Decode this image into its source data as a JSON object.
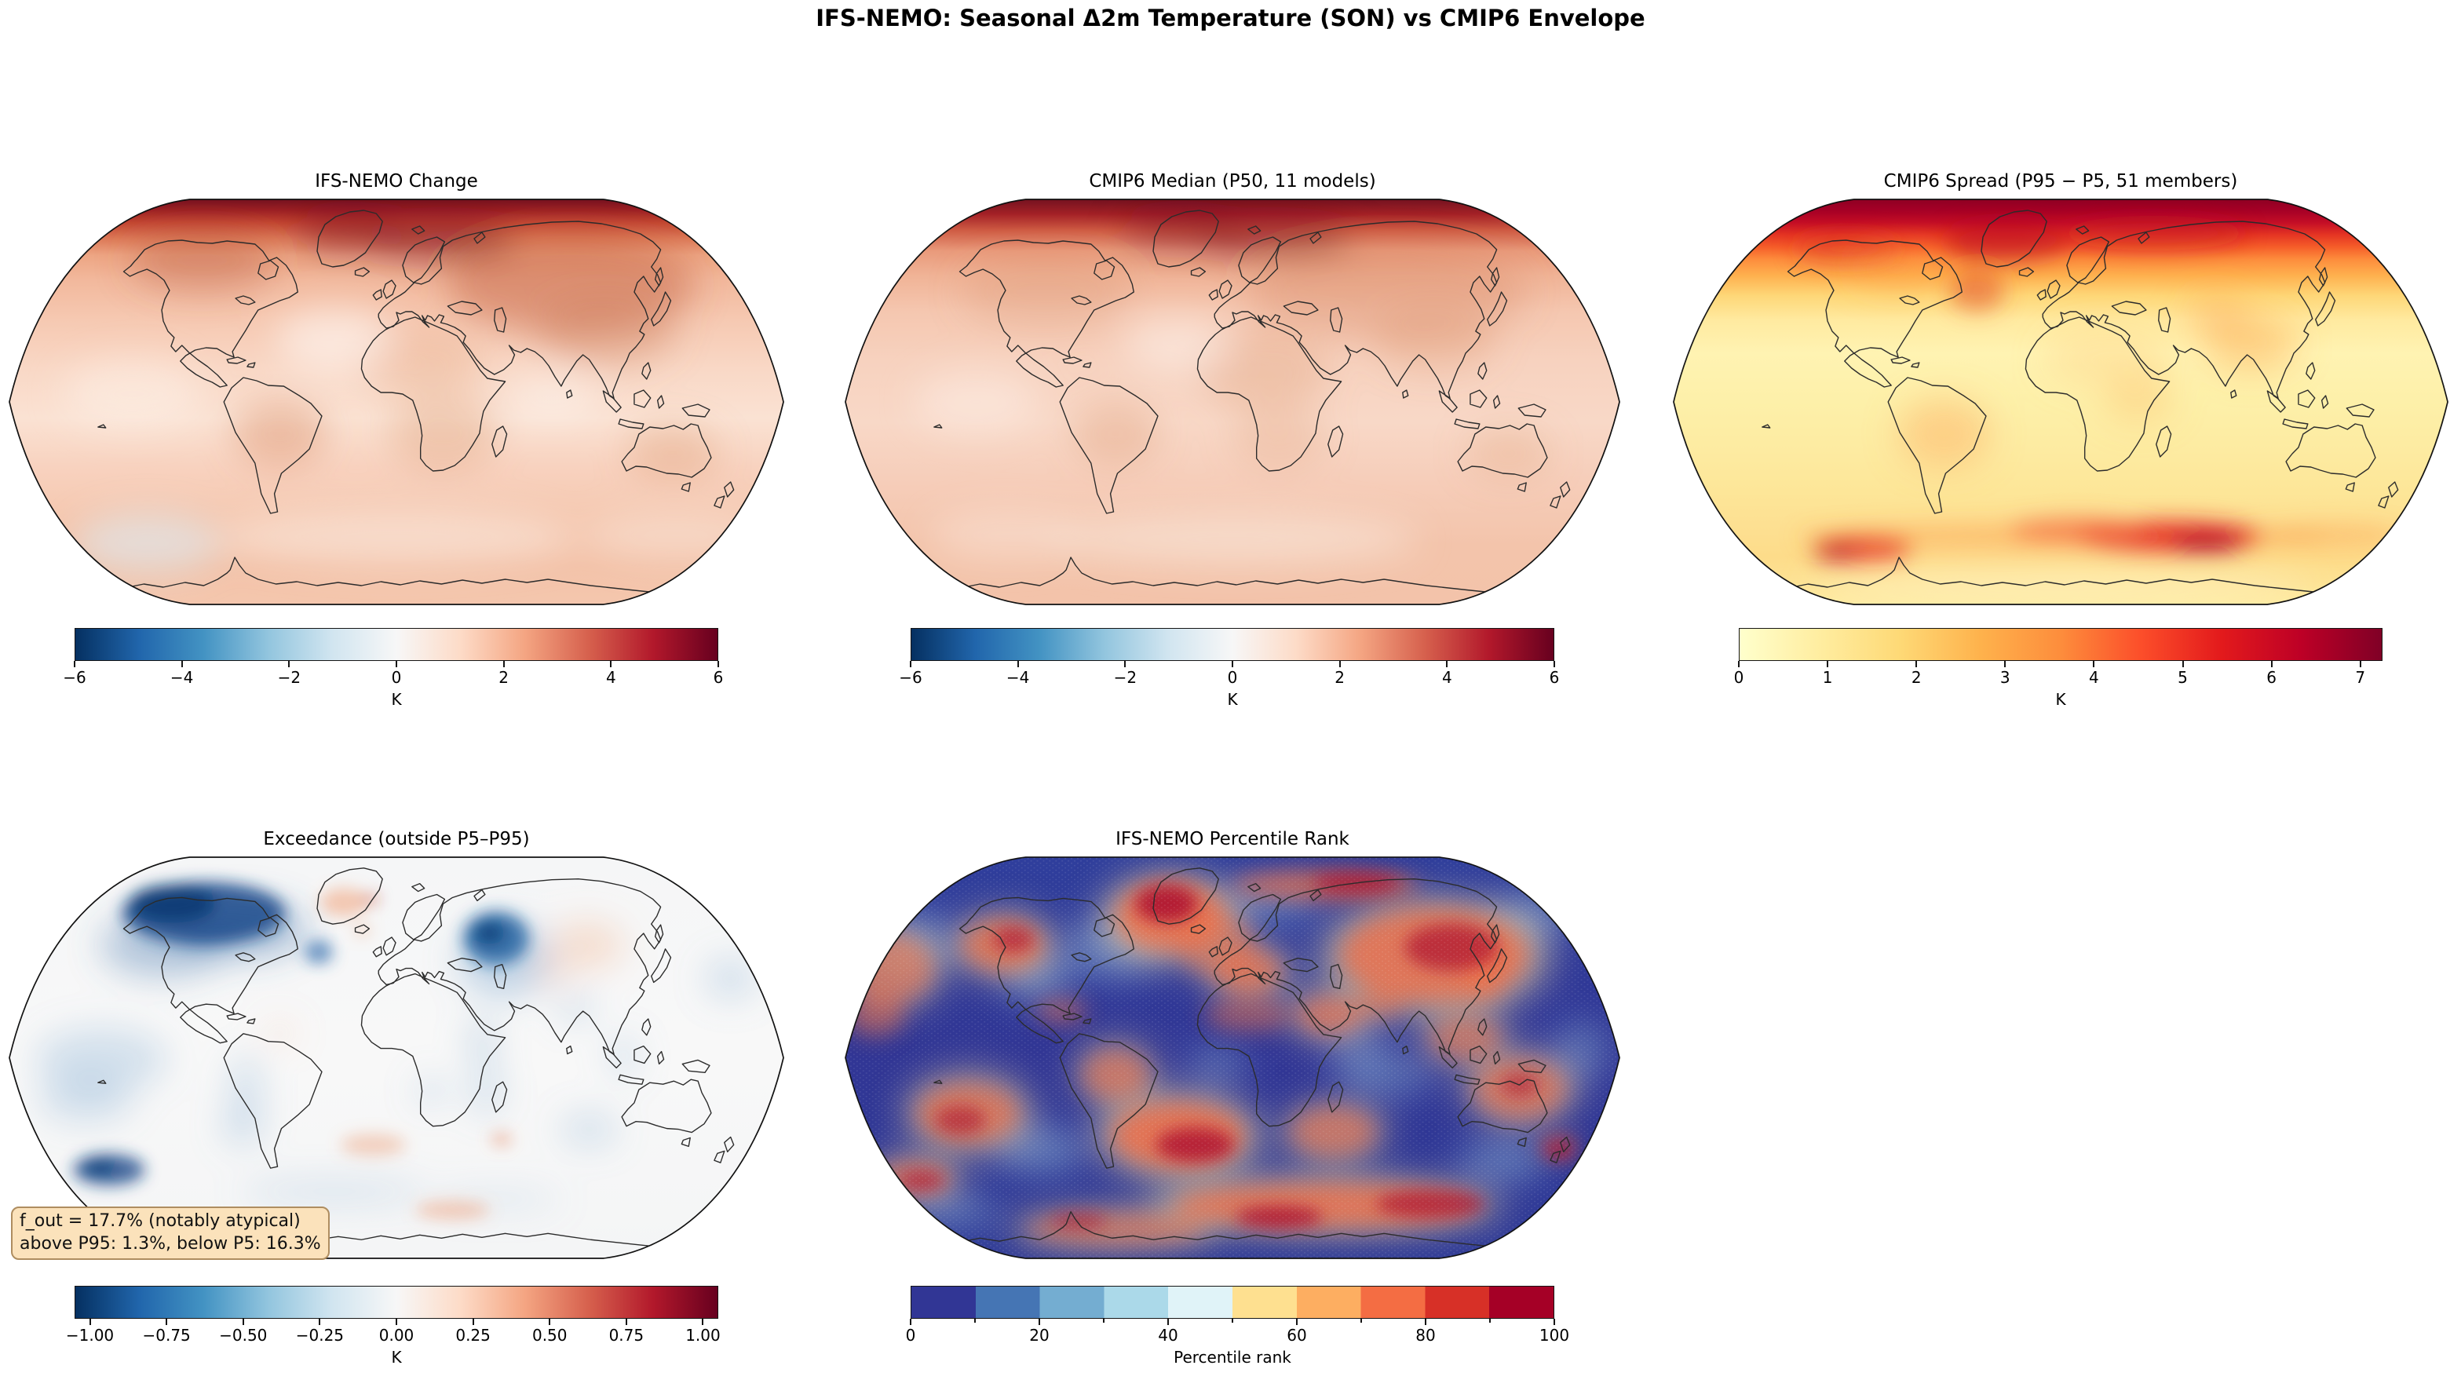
{
  "figure_title": "IFS-NEMO: Seasonal Δ2m Temperature (SON) vs CMIP6 Envelope",
  "panels": [
    {
      "key": "ifs_nemo_change",
      "title": "IFS-NEMO Change",
      "colorbar": {
        "unit": "K",
        "type": "continuous",
        "colormap": "RdBu_r",
        "vmin": -6,
        "vmax": 6,
        "tick_values": [
          -6,
          -4,
          -2,
          0,
          2,
          4,
          6
        ],
        "tick_labels": [
          "−6",
          "−4",
          "−2",
          "0",
          "2",
          "4",
          "6"
        ],
        "stops": [
          "#053061",
          "#2166ac",
          "#4393c3",
          "#92c5de",
          "#d1e5f0",
          "#f7f7f7",
          "#fddbc7",
          "#f4a582",
          "#d6604d",
          "#b2182b",
          "#67001f"
        ]
      }
    },
    {
      "key": "cmip6_median",
      "title": "CMIP6 Median (P50, 11 models)",
      "colorbar": {
        "unit": "K",
        "type": "continuous",
        "colormap": "RdBu_r",
        "vmin": -6,
        "vmax": 6,
        "tick_values": [
          -6,
          -4,
          -2,
          0,
          2,
          4,
          6
        ],
        "tick_labels": [
          "−6",
          "−4",
          "−2",
          "0",
          "2",
          "4",
          "6"
        ],
        "stops": [
          "#053061",
          "#2166ac",
          "#4393c3",
          "#92c5de",
          "#d1e5f0",
          "#f7f7f7",
          "#fddbc7",
          "#f4a582",
          "#d6604d",
          "#b2182b",
          "#67001f"
        ]
      }
    },
    {
      "key": "cmip6_spread",
      "title": "CMIP6 Spread (P95 − P5, 51 members)",
      "colorbar": {
        "unit": "K",
        "type": "continuous",
        "colormap": "YlOrRd",
        "vmin": 0,
        "vmax": 7.25,
        "tick_values": [
          0,
          1,
          2,
          3,
          4,
          5,
          6,
          7
        ],
        "tick_labels": [
          "0",
          "1",
          "2",
          "3",
          "4",
          "5",
          "6",
          "7"
        ],
        "stops": [
          "#ffffcc",
          "#ffeda0",
          "#fed976",
          "#feb24c",
          "#fd8d3c",
          "#fc4e2a",
          "#e31a1c",
          "#bd0026",
          "#800026"
        ]
      }
    },
    {
      "key": "exceedance",
      "title": "Exceedance (outside P5–P95)",
      "colorbar": {
        "unit": "K",
        "type": "continuous",
        "colormap": "RdBu_r",
        "vmin": -1.05,
        "vmax": 1.05,
        "tick_values": [
          -1,
          -0.75,
          -0.5,
          -0.25,
          0,
          0.25,
          0.5,
          0.75,
          1
        ],
        "tick_labels": [
          "−1.00",
          "−0.75",
          "−0.50",
          "−0.25",
          "0.00",
          "0.25",
          "0.50",
          "0.75",
          "1.00"
        ],
        "stops": [
          "#053061",
          "#2166ac",
          "#4393c3",
          "#92c5de",
          "#d1e5f0",
          "#f7f7f7",
          "#fddbc7",
          "#f4a582",
          "#d6604d",
          "#b2182b",
          "#67001f"
        ]
      }
    },
    {
      "key": "percentile_rank",
      "title": "IFS-NEMO Percentile Rank",
      "colorbar": {
        "unit": "Percentile rank",
        "type": "discrete",
        "colormap": "RdYlBu_r",
        "vmin": 0,
        "vmax": 100,
        "tick_values": [
          0,
          20,
          40,
          60,
          80,
          100
        ],
        "tick_labels": [
          "0",
          "20",
          "40",
          "60",
          "80",
          "100"
        ],
        "segments": [
          "#313695",
          "#4575b4",
          "#74add1",
          "#abd9e9",
          "#e0f3f8",
          "#fee090",
          "#fdae61",
          "#f46d43",
          "#d73027",
          "#a50026"
        ]
      }
    }
  ],
  "annotation": {
    "line1": "f_out = 17.7% (notably atypical)",
    "line2": "above P95: 1.3%, below P5: 16.3%"
  },
  "chart_data": [
    {
      "type": "heatmap",
      "title": "IFS-NEMO Change",
      "projection": "Robinson",
      "units": "K",
      "colormap": "RdBu_r",
      "value_range": [
        -6,
        6
      ],
      "summary": "Warming of about +1 to +2 K over most of the globe; strongest +4 to +6 K over the Arctic; near-zero pale patches over parts of the mid-latitude oceans."
    },
    {
      "type": "heatmap",
      "title": "CMIP6 Median (P50, 11 models)",
      "projection": "Robinson",
      "units": "K",
      "colormap": "RdBu_r",
      "value_range": [
        -6,
        6
      ],
      "summary": "Smooth ensemble-median warming of +1 to +2 K globally with Arctic amplification reaching +5 to +6 K; land slightly warmer than ocean."
    },
    {
      "type": "heatmap",
      "title": "CMIP6 Spread (P95 − P5, 51 members)",
      "projection": "Robinson",
      "units": "K",
      "colormap": "YlOrRd",
      "value_range": [
        0,
        7.25
      ],
      "summary": "Spread of roughly 1–2 K over most regions; 4–7 K along the Arctic rim and in wavy bands of the Southern Ocean near Antarctica; local maxima near the Labrador Sea."
    },
    {
      "type": "heatmap",
      "title": "Exceedance (outside P5–P95)",
      "projection": "Robinson",
      "units": "K",
      "colormap": "RdBu_r",
      "value_range": [
        -1.05,
        1.05
      ],
      "stats": {
        "f_out_percent": 17.7,
        "above_p95_percent": 1.3,
        "below_p5_percent": 16.3
      },
      "summary": "Mostly near zero (white); strong negative exceedance over Arctic Canada/Alaska and the Barents–Kara/Caspian sector; scattered weak cold patches over oceans; tiny warm speckles over Greenland, Siberia and the South Atlantic."
    },
    {
      "type": "heatmap",
      "title": "IFS-NEMO Percentile Rank",
      "projection": "Robinson",
      "units": "percentile",
      "colormap": "RdYlBu_r (10 discrete bins)",
      "value_range": [
        0,
        100
      ],
      "summary": "Low ranks (0–20, dark blue) over most oceans; high ranks (80–100, orange/red) over Greenland and the subpolar North Atlantic, Arctic Eurasia, central Siberia, western North America, the Mediterranean, the South Atlantic, the Southern Ocean near Antarctica, and around Australia/New Zealand."
    }
  ]
}
